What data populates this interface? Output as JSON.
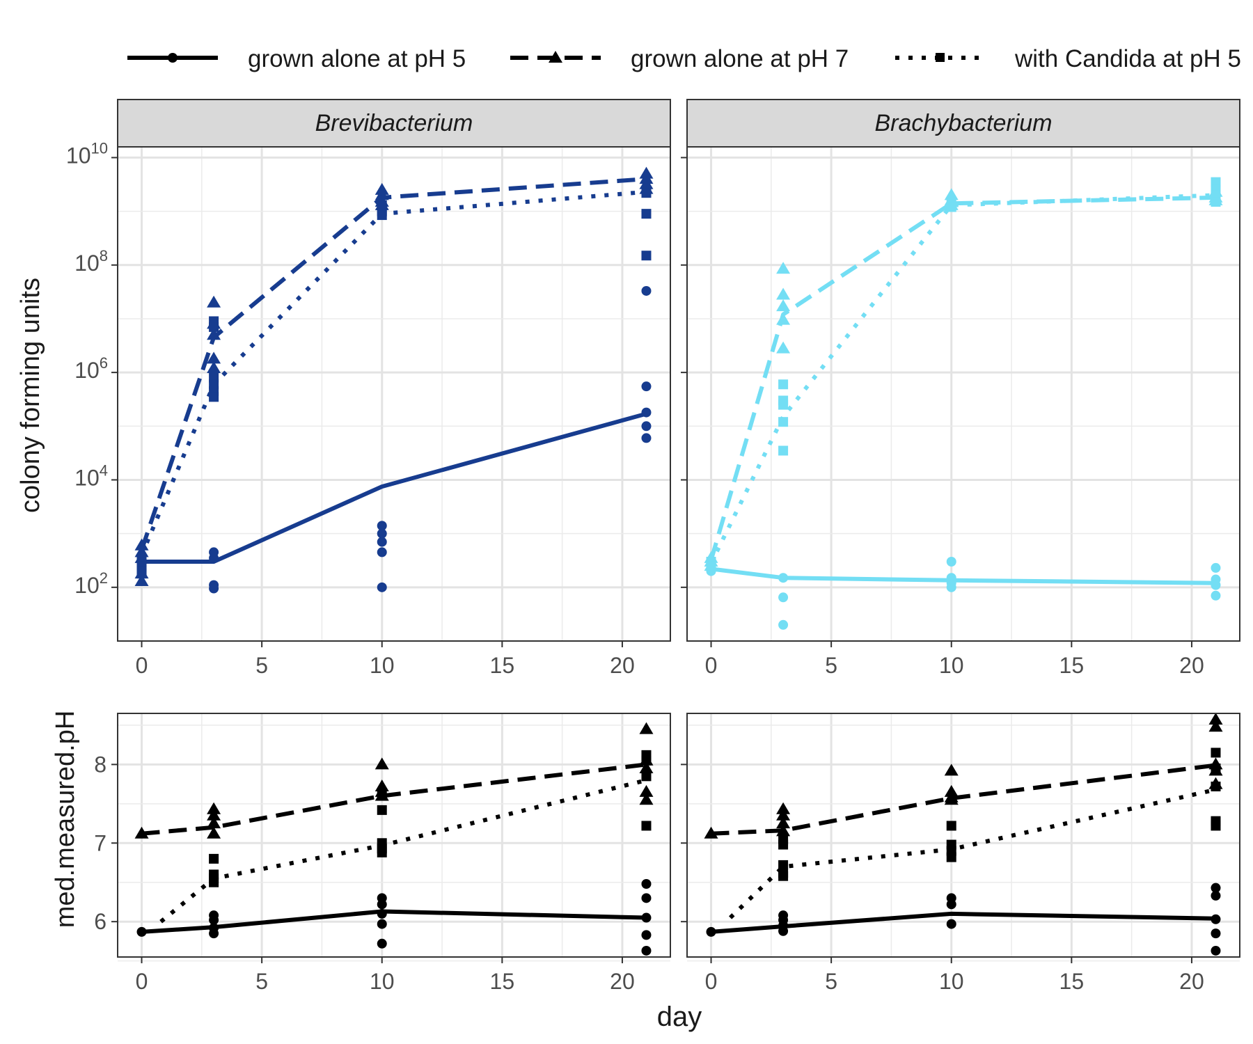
{
  "chart_data": {
    "type": "line",
    "xlabel": "day",
    "legend": {
      "position": "top",
      "entries": [
        {
          "label": "grown alone at pH 5",
          "linetype": "solid",
          "shape": "circle"
        },
        {
          "label": "grown alone at pH 7",
          "linetype": "dashed",
          "shape": "triangle"
        },
        {
          "label": "with Candida at pH 5",
          "linetype": "dotted",
          "shape": "square"
        }
      ]
    },
    "x_ticks": [
      "0",
      "5",
      "10",
      "15",
      "20"
    ],
    "xlim": [
      -1,
      22
    ],
    "colors": {
      "Brevibacterium": "#173c8f",
      "Brachybacterium": "#73def4",
      "ph": "#000000"
    },
    "panels": [
      {
        "strip": "Brevibacterium",
        "row": "cfu",
        "ylabel": "colony forming units",
        "scale": "log10",
        "ylim": [
          1,
          10.2
        ],
        "y_ticks": [
          {
            "exp": 2,
            "base": "10",
            "sup": "2"
          },
          {
            "exp": 4,
            "base": "10",
            "sup": "4"
          },
          {
            "exp": 6,
            "base": "10",
            "sup": "6"
          },
          {
            "exp": 8,
            "base": "10",
            "sup": "8"
          },
          {
            "exp": 10,
            "base": "10",
            "sup": "10"
          }
        ],
        "series": [
          {
            "group": "grown alone at pH 5",
            "line_x": [
              0,
              3,
              10,
              21
            ],
            "line_y": [
              300,
              300,
              7500,
              170000
            ],
            "points": [
              [
                0,
                250
              ],
              [
                0,
                350
              ],
              [
                0,
                200
              ],
              [
                0,
                280
              ],
              [
                3,
                450
              ],
              [
                3,
                350
              ],
              [
                3,
                110
              ],
              [
                3,
                95
              ],
              [
                10,
                1400
              ],
              [
                10,
                1000
              ],
              [
                10,
                700
              ],
              [
                10,
                450
              ],
              [
                10,
                100
              ],
              [
                21,
                33000000
              ],
              [
                21,
                550000
              ],
              [
                21,
                180000
              ],
              [
                21,
                100000
              ],
              [
                21,
                60000
              ]
            ]
          },
          {
            "group": "grown alone at pH 7",
            "line_x": [
              0,
              3,
              10,
              21
            ],
            "line_y": [
              500,
              4500000,
              1800000000,
              4000000000
            ],
            "points": [
              [
                0,
                600
              ],
              [
                0,
                450
              ],
              [
                0,
                350
              ],
              [
                0,
                180
              ],
              [
                0,
                130
              ],
              [
                3,
                20000000
              ],
              [
                3,
                5000000
              ],
              [
                3,
                1800000
              ],
              [
                3,
                1200000
              ],
              [
                3,
                8000000
              ],
              [
                10,
                2500000000
              ],
              [
                10,
                2000000000
              ],
              [
                10,
                1500000000
              ],
              [
                10,
                1300000000
              ],
              [
                21,
                5000000000
              ],
              [
                21,
                4000000000
              ],
              [
                21,
                3200000000
              ],
              [
                21,
                2600000000
              ]
            ]
          },
          {
            "group": "with Candida at pH 5",
            "line_x": [
              0,
              3,
              10,
              21
            ],
            "line_y": [
              400,
              600000,
              900000000,
              2300000000
            ],
            "points": [
              [
                0,
                300
              ],
              [
                0,
                250
              ],
              [
                0,
                200
              ],
              [
                0,
                180
              ],
              [
                3,
                9000000
              ],
              [
                3,
                7000000
              ],
              [
                3,
                800000
              ],
              [
                3,
                600000
              ],
              [
                3,
                450000
              ],
              [
                3,
                350000
              ],
              [
                10,
                1000000000
              ],
              [
                10,
                850000000
              ],
              [
                10,
                1300000000
              ],
              [
                21,
                2200000000
              ],
              [
                21,
                900000000
              ],
              [
                21,
                150000000
              ]
            ]
          }
        ]
      },
      {
        "strip": "Brachybacterium",
        "row": "cfu",
        "scale": "log10",
        "ylim": [
          1,
          10.2
        ],
        "series": [
          {
            "group": "grown alone at pH 5",
            "line_x": [
              0,
              3,
              10,
              21
            ],
            "line_y": [
              220,
              150,
              135,
              120
            ],
            "points": [
              [
                0,
                200
              ],
              [
                0,
                250
              ],
              [
                3,
                150
              ],
              [
                3,
                65
              ],
              [
                3,
                20
              ],
              [
                10,
                300
              ],
              [
                10,
                150
              ],
              [
                10,
                120
              ],
              [
                10,
                100
              ],
              [
                21,
                230
              ],
              [
                21,
                140
              ],
              [
                21,
                110
              ],
              [
                21,
                70
              ]
            ]
          },
          {
            "group": "grown alone at pH 7",
            "line_x": [
              0,
              3,
              10,
              21
            ],
            "line_y": [
              320,
              12000000,
              1400000000,
              1800000000
            ],
            "points": [
              [
                0,
                350
              ],
              [
                0,
                300
              ],
              [
                0,
                250
              ],
              [
                3,
                85000000
              ],
              [
                3,
                28000000
              ],
              [
                3,
                17000000
              ],
              [
                3,
                9500000
              ],
              [
                3,
                2800000
              ],
              [
                10,
                2000000000
              ],
              [
                10,
                1600000000
              ],
              [
                10,
                1300000000
              ],
              [
                21,
                2300000000
              ],
              [
                21,
                1800000000
              ],
              [
                21,
                1600000000
              ]
            ]
          },
          {
            "group": "with Candida at pH 5",
            "line_x": [
              0,
              3,
              10,
              21
            ],
            "line_y": [
              280,
              150000,
              1300000000,
              2000000000
            ],
            "points": [
              [
                0,
                300
              ],
              [
                0,
                250
              ],
              [
                3,
                600000
              ],
              [
                3,
                300000
              ],
              [
                3,
                250000
              ],
              [
                3,
                120000
              ],
              [
                3,
                35000
              ],
              [
                10,
                1400000000
              ],
              [
                10,
                1200000000
              ],
              [
                21,
                3500000000
              ],
              [
                21,
                2500000000
              ],
              [
                21,
                2000000000
              ],
              [
                21,
                1500000000
              ]
            ]
          }
        ]
      },
      {
        "row": "ph",
        "ylabel": "med.measured.pH",
        "scale": "linear",
        "ylim": [
          5.55,
          8.65
        ],
        "y_ticks": [
          "6",
          "7",
          "8"
        ],
        "series": [
          {
            "group": "grown alone at pH 5",
            "line_x": [
              0,
              3,
              10,
              21
            ],
            "line_y": [
              5.87,
              5.93,
              6.13,
              6.05
            ],
            "points": [
              [
                0,
                5.87
              ],
              [
                3,
                6.08
              ],
              [
                3,
                6.02
              ],
              [
                3,
                5.92
              ],
              [
                3,
                5.85
              ],
              [
                10,
                6.3
              ],
              [
                10,
                6.22
              ],
              [
                10,
                6.1
              ],
              [
                10,
                5.97
              ],
              [
                10,
                5.72
              ],
              [
                21,
                6.48
              ],
              [
                21,
                6.3
              ],
              [
                21,
                6.05
              ],
              [
                21,
                5.83
              ],
              [
                21,
                5.63
              ]
            ]
          },
          {
            "group": "grown alone at pH 7",
            "line_x": [
              0,
              3,
              10,
              21
            ],
            "line_y": [
              7.12,
              7.2,
              7.6,
              8.0
            ],
            "points": [
              [
                0,
                7.12
              ],
              [
                3,
                7.43
              ],
              [
                3,
                7.35
              ],
              [
                3,
                7.25
              ],
              [
                3,
                7.12
              ],
              [
                10,
                8.0
              ],
              [
                10,
                7.72
              ],
              [
                10,
                7.65
              ],
              [
                10,
                7.6
              ],
              [
                21,
                8.45
              ],
              [
                21,
                8.05
              ],
              [
                21,
                7.95
              ],
              [
                21,
                7.65
              ],
              [
                21,
                7.55
              ]
            ]
          },
          {
            "group": "with Candida at pH 5",
            "line_x": [
              0.8,
              3,
              10,
              21
            ],
            "line_y": [
              6.0,
              6.55,
              6.97,
              7.8
            ],
            "points": [
              [
                3,
                6.8
              ],
              [
                3,
                6.6
              ],
              [
                3,
                6.55
              ],
              [
                3,
                6.5
              ],
              [
                10,
                7.6
              ],
              [
                10,
                7.42
              ],
              [
                10,
                7.0
              ],
              [
                10,
                6.93
              ],
              [
                10,
                6.88
              ],
              [
                21,
                8.12
              ],
              [
                21,
                8.05
              ],
              [
                21,
                7.85
              ],
              [
                21,
                7.22
              ]
            ]
          }
        ]
      },
      {
        "row": "ph",
        "scale": "linear",
        "ylim": [
          5.55,
          8.65
        ],
        "series": [
          {
            "group": "grown alone at pH 5",
            "line_x": [
              0,
              3,
              10,
              21
            ],
            "line_y": [
              5.87,
              5.94,
              6.1,
              6.04
            ],
            "points": [
              [
                0,
                5.87
              ],
              [
                3,
                6.08
              ],
              [
                3,
                6.02
              ],
              [
                3,
                5.95
              ],
              [
                3,
                5.88
              ],
              [
                10,
                6.3
              ],
              [
                10,
                6.22
              ],
              [
                10,
                5.97
              ],
              [
                21,
                6.43
              ],
              [
                21,
                6.33
              ],
              [
                21,
                6.03
              ],
              [
                21,
                5.85
              ],
              [
                21,
                5.63
              ]
            ]
          },
          {
            "group": "grown alone at pH 7",
            "line_x": [
              0,
              3,
              10,
              21
            ],
            "line_y": [
              7.12,
              7.16,
              7.57,
              7.99
            ],
            "points": [
              [
                0,
                7.12
              ],
              [
                3,
                7.43
              ],
              [
                3,
                7.35
              ],
              [
                3,
                7.25
              ],
              [
                3,
                7.15
              ],
              [
                10,
                7.92
              ],
              [
                10,
                7.65
              ],
              [
                10,
                7.58
              ],
              [
                10,
                7.55
              ],
              [
                21,
                8.57
              ],
              [
                21,
                8.48
              ],
              [
                21,
                8.0
              ],
              [
                21,
                7.92
              ],
              [
                21,
                7.75
              ]
            ]
          },
          {
            "group": "with Candida at pH 5",
            "line_x": [
              0.8,
              3,
              10,
              21
            ],
            "line_y": [
              6.05,
              6.7,
              6.92,
              7.68
            ],
            "points": [
              [
                3,
                7.05
              ],
              [
                3,
                6.98
              ],
              [
                3,
                6.72
              ],
              [
                3,
                6.62
              ],
              [
                3,
                6.58
              ],
              [
                10,
                7.22
              ],
              [
                10,
                6.98
              ],
              [
                10,
                6.9
              ],
              [
                10,
                6.82
              ],
              [
                21,
                8.15
              ],
              [
                21,
                7.95
              ],
              [
                21,
                7.72
              ],
              [
                21,
                7.28
              ],
              [
                21,
                7.22
              ]
            ]
          }
        ]
      }
    ]
  }
}
